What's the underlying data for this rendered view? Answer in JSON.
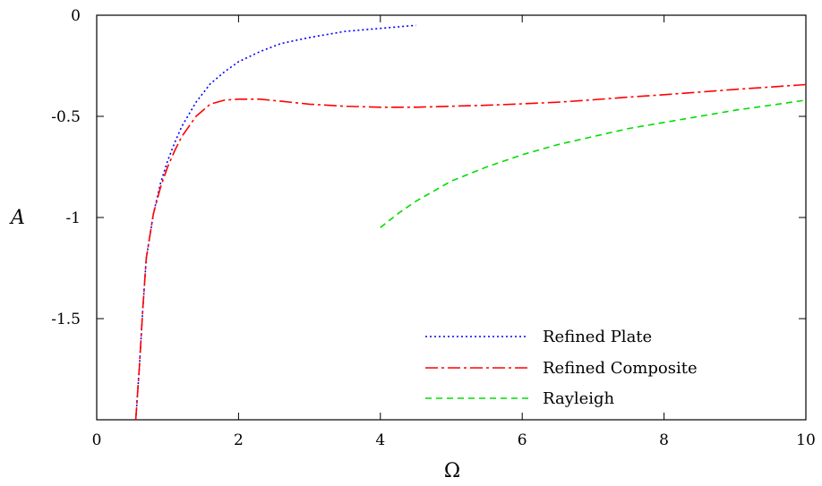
{
  "chart_data": {
    "type": "line",
    "xlabel": "Ω",
    "ylabel": "A",
    "xlim": [
      0,
      10
    ],
    "ylim": [
      -2,
      0
    ],
    "grid": false,
    "legend_position": "bottom-right",
    "x_ticks": [
      0,
      2,
      4,
      6,
      8,
      10
    ],
    "x_tick_labels": [
      "0",
      "2",
      "4",
      "6",
      "8",
      "10"
    ],
    "y_ticks": [
      0,
      -0.5,
      -1,
      -1.5
    ],
    "y_tick_labels": [
      "0",
      "-0.5",
      "-1",
      "-1.5"
    ],
    "series": [
      {
        "name": "Refined Plate",
        "color": "#0000ff",
        "dash": "dotted",
        "x": [
          0.55,
          0.6,
          0.65,
          0.7,
          0.8,
          0.9,
          1.0,
          1.1,
          1.2,
          1.4,
          1.6,
          1.8,
          2.0,
          2.3,
          2.6,
          3.0,
          3.5,
          4.0,
          4.5
        ],
        "y": [
          -2.0,
          -1.75,
          -1.45,
          -1.2,
          -0.98,
          -0.83,
          -0.72,
          -0.63,
          -0.55,
          -0.43,
          -0.34,
          -0.28,
          -0.23,
          -0.18,
          -0.14,
          -0.11,
          -0.08,
          -0.065,
          -0.05
        ]
      },
      {
        "name": "Refined Composite",
        "color": "#ff0000",
        "dash": "dashdot",
        "x": [
          0.55,
          0.6,
          0.65,
          0.7,
          0.8,
          0.9,
          1.0,
          1.1,
          1.2,
          1.4,
          1.6,
          1.8,
          2.0,
          2.3,
          2.6,
          3.0,
          3.5,
          4.0,
          4.5,
          5.0,
          5.5,
          6.0,
          6.5,
          7.0,
          7.5,
          8.0,
          8.5,
          9.0,
          9.5,
          10.0
        ],
        "y": [
          -2.0,
          -1.75,
          -1.45,
          -1.2,
          -0.98,
          -0.85,
          -0.75,
          -0.67,
          -0.6,
          -0.5,
          -0.44,
          -0.42,
          -0.415,
          -0.415,
          -0.425,
          -0.44,
          -0.45,
          -0.455,
          -0.455,
          -0.45,
          -0.445,
          -0.438,
          -0.43,
          -0.418,
          -0.405,
          -0.393,
          -0.38,
          -0.367,
          -0.355,
          -0.343
        ]
      },
      {
        "name": "Rayleigh",
        "color": "#00dd00",
        "dash": "dashed",
        "x": [
          4.0,
          4.25,
          4.5,
          5.0,
          5.5,
          6.0,
          6.5,
          7.0,
          7.5,
          8.0,
          8.5,
          9.0,
          9.5,
          10.0
        ],
        "y": [
          -1.05,
          -0.98,
          -0.92,
          -0.82,
          -0.75,
          -0.69,
          -0.64,
          -0.6,
          -0.56,
          -0.53,
          -0.5,
          -0.47,
          -0.445,
          -0.42
        ]
      }
    ]
  }
}
